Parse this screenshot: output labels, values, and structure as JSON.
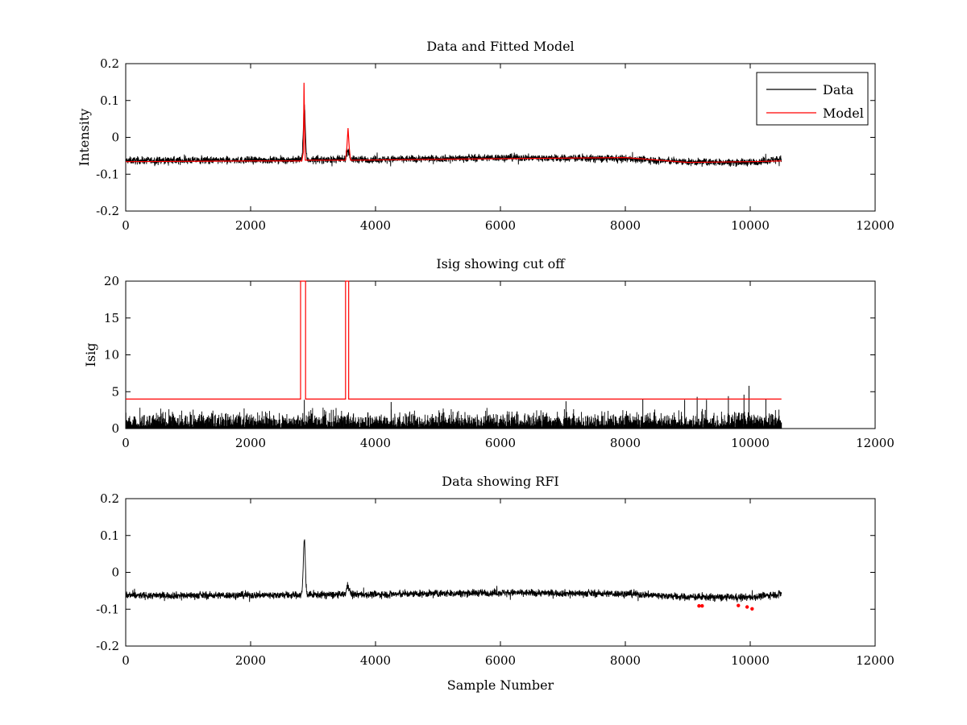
{
  "chart_data": [
    {
      "type": "line",
      "title": "Data and Fitted Model",
      "xlabel": "",
      "ylabel": "Intensity",
      "xlim": [
        0,
        12000
      ],
      "ylim": [
        -0.2,
        0.2
      ],
      "xticks": [
        0,
        2000,
        4000,
        6000,
        8000,
        10000,
        12000
      ],
      "yticks": [
        -0.2,
        -0.1,
        0,
        0.1,
        0.2
      ],
      "xtick_labels": [
        "0",
        "2000",
        "4000",
        "6000",
        "8000",
        "10000",
        "12000"
      ],
      "ytick_labels": [
        "-0.2",
        "-0.1",
        "0",
        "0.1",
        "0.2"
      ],
      "legend_position": "top-right",
      "series": [
        {
          "name": "Data",
          "color": "#000000",
          "style": "noise",
          "n_samples": 10500,
          "baseline": [
            [
              0,
              -0.063
            ],
            [
              2000,
              -0.062
            ],
            [
              4000,
              -0.06
            ],
            [
              6000,
              -0.055
            ],
            [
              8000,
              -0.058
            ],
            [
              9000,
              -0.067
            ],
            [
              10000,
              -0.068
            ],
            [
              10500,
              -0.058
            ]
          ],
          "noise_amplitude": 0.008,
          "peaks": [
            {
              "x": 2860,
              "height": 0.148,
              "width": 16
            },
            {
              "x": 3560,
              "height": 0.025,
              "width": 22
            }
          ]
        },
        {
          "name": "Model",
          "color": "#ff0000",
          "style": "line",
          "points": [
            [
              0,
              -0.066
            ],
            [
              2000,
              -0.064
            ],
            [
              2820,
              -0.064
            ],
            [
              2845,
              -0.04
            ],
            [
              2855,
              0.148
            ],
            [
              2862,
              0.06
            ],
            [
              2875,
              -0.062
            ],
            [
              3520,
              -0.062
            ],
            [
              3540,
              -0.03
            ],
            [
              3560,
              0.025
            ],
            [
              3580,
              -0.03
            ],
            [
              3600,
              -0.062
            ],
            [
              6000,
              -0.058
            ],
            [
              8000,
              -0.055
            ],
            [
              9000,
              -0.068
            ],
            [
              10000,
              -0.066
            ],
            [
              10500,
              -0.064
            ]
          ]
        }
      ]
    },
    {
      "type": "line",
      "title": "Isig showing cut off",
      "xlabel": "",
      "ylabel": "Isig",
      "xlim": [
        0,
        12000
      ],
      "ylim": [
        0,
        20
      ],
      "xticks": [
        0,
        2000,
        4000,
        6000,
        8000,
        10000,
        12000
      ],
      "yticks": [
        0,
        5,
        10,
        15,
        20
      ],
      "xtick_labels": [
        "0",
        "2000",
        "4000",
        "6000",
        "8000",
        "10000",
        "12000"
      ],
      "ytick_labels": [
        "0",
        "5",
        "10",
        "15",
        "20"
      ],
      "series": [
        {
          "color": "#000000",
          "style": "spikes",
          "n_samples": 10500,
          "typical_max": 2.3,
          "spikes": [
            [
              2860,
              3.9
            ],
            [
              4250,
              3.6
            ],
            [
              7050,
              3.7
            ],
            [
              8280,
              4.0
            ],
            [
              8950,
              3.9
            ],
            [
              9150,
              4.3
            ],
            [
              9300,
              3.9
            ],
            [
              9650,
              4.4
            ],
            [
              9900,
              4.6
            ],
            [
              9980,
              5.8
            ],
            [
              10250,
              4.0
            ]
          ]
        },
        {
          "color": "#ff0000",
          "style": "line",
          "points": [
            [
              0,
              4
            ],
            [
              2800,
              4
            ],
            [
              2800,
              20
            ],
            [
              2880,
              20
            ],
            [
              2880,
              4
            ],
            [
              3520,
              4
            ],
            [
              3520,
              20
            ],
            [
              3570,
              20
            ],
            [
              3570,
              4
            ],
            [
              10500,
              4
            ]
          ]
        }
      ]
    },
    {
      "type": "line",
      "title": "Data showing RFI",
      "xlabel": "Sample Number",
      "ylabel": "",
      "xlim": [
        0,
        12000
      ],
      "ylim": [
        -0.2,
        0.2
      ],
      "xticks": [
        0,
        2000,
        4000,
        6000,
        8000,
        10000,
        12000
      ],
      "yticks": [
        -0.2,
        -0.1,
        0,
        0.1,
        0.2
      ],
      "xtick_labels": [
        "0",
        "2000",
        "4000",
        "6000",
        "8000",
        "10000",
        "12000"
      ],
      "ytick_labels": [
        "-0.2",
        "-0.1",
        "0",
        "0.1",
        "0.2"
      ],
      "series": [
        {
          "color": "#000000",
          "style": "noise",
          "n_samples": 10500,
          "baseline": [
            [
              0,
              -0.063
            ],
            [
              2000,
              -0.062
            ],
            [
              4000,
              -0.06
            ],
            [
              6000,
              -0.055
            ],
            [
              8000,
              -0.058
            ],
            [
              9000,
              -0.067
            ],
            [
              10000,
              -0.068
            ],
            [
              10500,
              -0.058
            ]
          ],
          "noise_amplitude": 0.008,
          "peaks": [
            {
              "x": 2860,
              "height": 0.148,
              "width": 16
            },
            {
              "x": 3560,
              "height": 0.025,
              "width": 22
            }
          ]
        },
        {
          "color": "#ff0000",
          "style": "markers",
          "points": [
            [
              9180,
              -0.091
            ],
            [
              9230,
              -0.091
            ],
            [
              9810,
              -0.09
            ],
            [
              9950,
              -0.094
            ],
            [
              10030,
              -0.099
            ]
          ]
        }
      ]
    }
  ]
}
